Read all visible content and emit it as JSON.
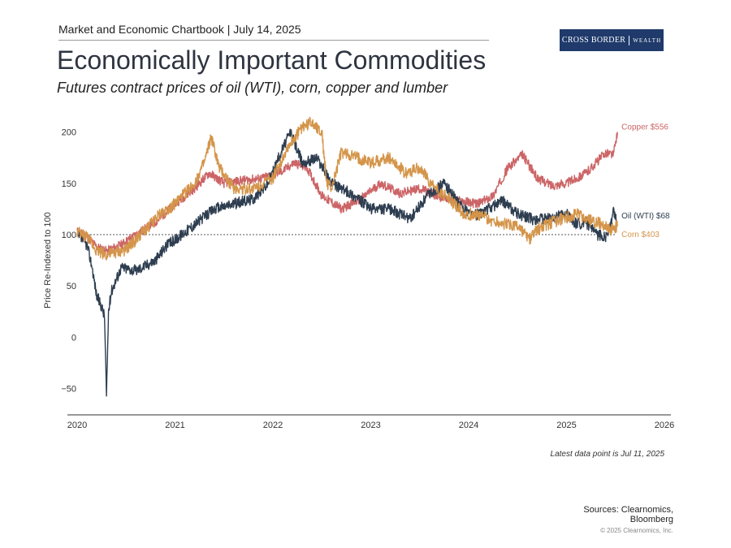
{
  "header": {
    "chartbook": "Market and Economic Chartbook | July 14, 2025"
  },
  "logo": {
    "brand": "CROSS BORDER",
    "brand2": "WEALTH"
  },
  "title": "Economically Important Commodities",
  "subtitle": "Futures contract prices of oil (WTI), corn, copper and lumber",
  "note": "Latest data point is Jul 11, 2025",
  "sources": {
    "line1": "Sources: Clearnomics,",
    "line2": "Bloomberg"
  },
  "copyright": "© 2025 Clearnomics, Inc.",
  "colors": {
    "oil": "#2e3e50",
    "corn": "#d4954a",
    "copper": "#cc6466",
    "axis": "#333333",
    "ref": "#555555"
  },
  "chart_data": {
    "type": "line",
    "title": "Economically Important Commodities",
    "xlabel": "",
    "ylabel": "Price Re-Indexed to 100",
    "xlim": [
      2020,
      2026
    ],
    "ylim": [
      -75,
      210
    ],
    "x_ticks": [
      "2020",
      "2021",
      "2022",
      "2023",
      "2024",
      "2025",
      "2026"
    ],
    "y_ticks": [
      -50,
      0,
      50,
      100,
      150,
      200
    ],
    "y_tick_labels": [
      "−50",
      "0",
      "50",
      "100",
      "150",
      "200"
    ],
    "reference_line": 100,
    "series": [
      {
        "name": "Copper",
        "label": "Copper $556",
        "color_key": "copper",
        "x": [
          2020.0,
          2020.1,
          2020.2,
          2020.3,
          2020.45,
          2020.6,
          2020.8,
          2021.0,
          2021.2,
          2021.35,
          2021.5,
          2021.7,
          2021.9,
          2022.1,
          2022.22,
          2022.35,
          2022.5,
          2022.7,
          2022.9,
          2023.1,
          2023.3,
          2023.5,
          2023.7,
          2023.9,
          2024.1,
          2024.25,
          2024.4,
          2024.55,
          2024.7,
          2024.85,
          2025.0,
          2025.2,
          2025.3,
          2025.4,
          2025.48,
          2025.52
        ],
        "y": [
          103,
          98,
          88,
          84,
          90,
          100,
          112,
          130,
          145,
          160,
          150,
          153,
          155,
          162,
          170,
          165,
          138,
          125,
          135,
          150,
          140,
          145,
          137,
          133,
          130,
          138,
          165,
          178,
          155,
          148,
          150,
          160,
          170,
          180,
          178,
          200
        ]
      },
      {
        "name": "Oil (WTI)",
        "label": "Oil (WTI) $68",
        "color_key": "oil",
        "x": [
          2020.0,
          2020.1,
          2020.15,
          2020.2,
          2020.25,
          2020.28,
          2020.3,
          2020.32,
          2020.35,
          2020.45,
          2020.6,
          2020.8,
          2020.9,
          2021.0,
          2021.2,
          2021.4,
          2021.6,
          2021.8,
          2021.95,
          2022.08,
          2022.18,
          2022.3,
          2022.45,
          2022.6,
          2022.8,
          2023.0,
          2023.2,
          2023.4,
          2023.6,
          2023.75,
          2023.9,
          2024.05,
          2024.2,
          2024.35,
          2024.5,
          2024.65,
          2024.8,
          2025.0,
          2025.1,
          2025.2,
          2025.3,
          2025.4,
          2025.45,
          2025.48,
          2025.52
        ],
        "y": [
          100,
          90,
          70,
          40,
          30,
          20,
          -60,
          25,
          45,
          68,
          65,
          75,
          88,
          95,
          110,
          125,
          130,
          135,
          150,
          180,
          200,
          170,
          175,
          150,
          140,
          125,
          125,
          115,
          140,
          150,
          130,
          118,
          125,
          133,
          120,
          115,
          115,
          120,
          110,
          112,
          100,
          98,
          108,
          123,
          112
        ]
      },
      {
        "name": "Corn",
        "label": "Corn $403",
        "color_key": "corn",
        "x": [
          2020.0,
          2020.1,
          2020.2,
          2020.3,
          2020.5,
          2020.65,
          2020.85,
          2021.0,
          2021.2,
          2021.3,
          2021.37,
          2021.45,
          2021.6,
          2021.8,
          2022.0,
          2022.15,
          2022.3,
          2022.4,
          2022.5,
          2022.55,
          2022.6,
          2022.7,
          2022.85,
          2023.0,
          2023.2,
          2023.35,
          2023.5,
          2023.65,
          2023.8,
          2023.95,
          2024.1,
          2024.25,
          2024.4,
          2024.5,
          2024.62,
          2024.7,
          2024.8,
          2024.95,
          2025.1,
          2025.2,
          2025.3,
          2025.4,
          2025.45,
          2025.52
        ],
        "y": [
          102,
          98,
          85,
          80,
          85,
          100,
          120,
          130,
          150,
          170,
          195,
          165,
          145,
          145,
          155,
          185,
          205,
          210,
          200,
          150,
          145,
          180,
          175,
          170,
          175,
          160,
          165,
          145,
          135,
          120,
          120,
          113,
          110,
          108,
          95,
          105,
          110,
          115,
          120,
          115,
          112,
          108,
          105,
          108
        ]
      }
    ]
  }
}
